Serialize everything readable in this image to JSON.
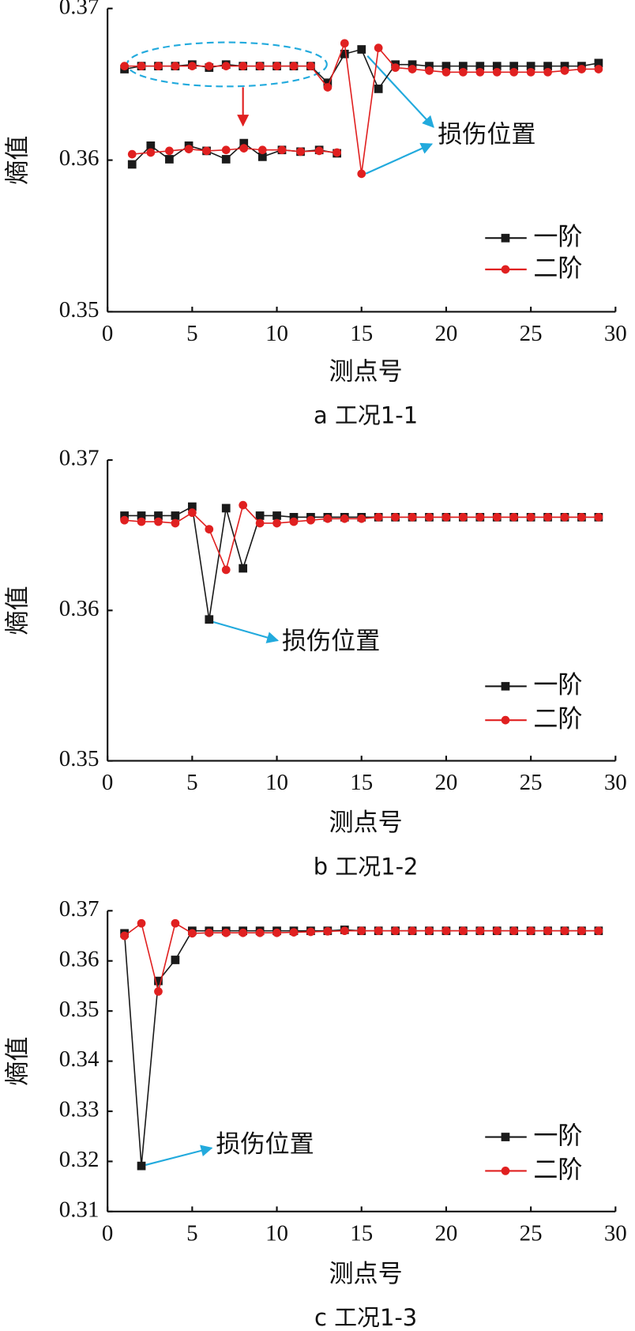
{
  "chart_data": [
    {
      "type": "line",
      "caption": "a 工况1-1",
      "xlabel": "测点号",
      "ylabel": "熵值",
      "annotation": "损伤位置",
      "x": [
        1,
        2,
        3,
        4,
        5,
        6,
        7,
        8,
        9,
        10,
        11,
        12,
        13,
        14,
        15,
        16,
        17,
        18,
        19,
        20,
        21,
        22,
        23,
        24,
        25,
        26,
        27,
        28,
        29
      ],
      "series": [
        {
          "name": "一阶",
          "color": "#1a1a1a",
          "marker": "square",
          "values": [
            0.366,
            0.3662,
            0.3662,
            0.3662,
            0.3663,
            0.3661,
            0.3663,
            0.3662,
            0.3662,
            0.3662,
            0.3662,
            0.3662,
            0.3651,
            0.367,
            0.3673,
            0.3647,
            0.3663,
            0.3663,
            0.3662,
            0.3662,
            0.3662,
            0.3662,
            0.3662,
            0.3662,
            0.3662,
            0.3662,
            0.3662,
            0.3662,
            0.3664
          ]
        },
        {
          "name": "二阶",
          "color": "#e02020",
          "marker": "circle",
          "values": [
            0.3662,
            0.3662,
            0.3662,
            0.3662,
            0.3662,
            0.3662,
            0.3662,
            0.3662,
            0.3662,
            0.3662,
            0.3662,
            0.3662,
            0.3648,
            0.3677,
            0.3591,
            0.3674,
            0.3661,
            0.366,
            0.3659,
            0.3658,
            0.3658,
            0.3658,
            0.3658,
            0.3658,
            0.3658,
            0.3658,
            0.3659,
            0.366,
            0.366
          ]
        }
      ],
      "inset": {
        "x": [
          1.45,
          2.55,
          3.65,
          4.8,
          5.85,
          7.0,
          8.05,
          9.15,
          10.3,
          11.4,
          12.5,
          13.55
        ],
        "series": [
          {
            "color": "#1a1a1a",
            "marker": "square",
            "values": [
              0.35972,
              0.36095,
              0.36006,
              0.36095,
              0.36061,
              0.36006,
              0.36112,
              0.36022,
              0.36067,
              0.36056,
              0.36067,
              0.36045
            ]
          },
          {
            "color": "#e02020",
            "marker": "circle",
            "values": [
              0.36039,
              0.3605,
              0.36061,
              0.36073,
              0.36061,
              0.36067,
              0.36078,
              0.36067,
              0.36067,
              0.36056,
              0.36061,
              0.3605
            ]
          }
        ]
      },
      "xlim": [
        0,
        30
      ],
      "ylim": [
        0.35,
        0.37
      ],
      "xticks": [
        0,
        5,
        10,
        15,
        20,
        25,
        30
      ],
      "yticks": [
        0.35,
        0.36,
        0.37
      ]
    },
    {
      "type": "line",
      "caption": "b 工况1-2",
      "xlabel": "测点号",
      "ylabel": "熵值",
      "annotation": "损伤位置",
      "x": [
        1,
        2,
        3,
        4,
        5,
        6,
        7,
        8,
        9,
        10,
        11,
        12,
        13,
        14,
        15,
        16,
        17,
        18,
        19,
        20,
        21,
        22,
        23,
        24,
        25,
        26,
        27,
        28,
        29
      ],
      "series": [
        {
          "name": "一阶",
          "color": "#1a1a1a",
          "marker": "square",
          "values": [
            0.3663,
            0.3663,
            0.3663,
            0.3663,
            0.3669,
            0.3594,
            0.3668,
            0.3628,
            0.3663,
            0.3663,
            0.3662,
            0.3662,
            0.3662,
            0.3662,
            0.3662,
            0.3662,
            0.3662,
            0.3662,
            0.3662,
            0.3662,
            0.3662,
            0.3662,
            0.3662,
            0.3662,
            0.3662,
            0.3662,
            0.3662,
            0.3662,
            0.3662
          ]
        },
        {
          "name": "二阶",
          "color": "#e02020",
          "marker": "circle",
          "values": [
            0.366,
            0.3659,
            0.3659,
            0.3658,
            0.3665,
            0.3654,
            0.3627,
            0.367,
            0.3658,
            0.3658,
            0.3659,
            0.366,
            0.3661,
            0.3661,
            0.3661,
            0.3662,
            0.3662,
            0.3662,
            0.3662,
            0.3662,
            0.3662,
            0.3662,
            0.3662,
            0.3662,
            0.3662,
            0.3662,
            0.3662,
            0.3662,
            0.3662
          ]
        }
      ],
      "xlim": [
        0,
        30
      ],
      "ylim": [
        0.35,
        0.37
      ],
      "xticks": [
        0,
        5,
        10,
        15,
        20,
        25,
        30
      ],
      "yticks": [
        0.35,
        0.36,
        0.37
      ]
    },
    {
      "type": "line",
      "caption": "c 工况1-3",
      "xlabel": "测点号",
      "ylabel": "熵值",
      "annotation": "损伤位置",
      "x": [
        1,
        2,
        3,
        4,
        5,
        6,
        7,
        8,
        9,
        10,
        11,
        12,
        13,
        14,
        15,
        16,
        17,
        18,
        19,
        20,
        21,
        22,
        23,
        24,
        25,
        26,
        27,
        28,
        29
      ],
      "series": [
        {
          "name": "一阶",
          "color": "#1a1a1a",
          "marker": "square",
          "values": [
            0.3655,
            0.3191,
            0.356,
            0.3602,
            0.366,
            0.366,
            0.366,
            0.366,
            0.366,
            0.366,
            0.366,
            0.366,
            0.366,
            0.3662,
            0.366,
            0.366,
            0.366,
            0.366,
            0.366,
            0.366,
            0.366,
            0.366,
            0.366,
            0.366,
            0.366,
            0.366,
            0.366,
            0.366,
            0.366
          ]
        },
        {
          "name": "二阶",
          "color": "#e02020",
          "marker": "circle",
          "values": [
            0.365,
            0.3675,
            0.3539,
            0.3675,
            0.3655,
            0.3656,
            0.3656,
            0.3656,
            0.3656,
            0.3656,
            0.3657,
            0.3658,
            0.3659,
            0.366,
            0.366,
            0.366,
            0.366,
            0.366,
            0.366,
            0.366,
            0.366,
            0.366,
            0.366,
            0.366,
            0.366,
            0.366,
            0.366,
            0.366,
            0.366
          ]
        }
      ],
      "xlim": [
        0,
        30
      ],
      "ylim": [
        0.31,
        0.37
      ],
      "xticks": [
        0,
        5,
        10,
        15,
        20,
        25,
        30
      ],
      "yticks": [
        0.31,
        0.32,
        0.33,
        0.34,
        0.35,
        0.36,
        0.37
      ]
    }
  ]
}
